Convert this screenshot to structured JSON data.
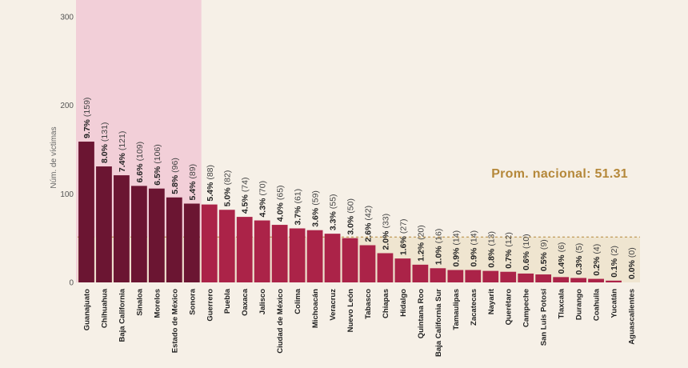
{
  "colors": {
    "background": "#f6f0e7",
    "highlight_band": "#f2cfd8",
    "bar_top": "#6b1532",
    "bar_rest": "#ab2348",
    "average_fill": "#ece1c8",
    "average_text": "#b5883a"
  },
  "chart_data": {
    "type": "bar",
    "ylabel": "Núm. de víctimas",
    "ylim": [
      0,
      300
    ],
    "yticks": [
      "0",
      "100",
      "200",
      "300"
    ],
    "average": {
      "label": "Prom. nacional: 51.31",
      "value": 51.31
    },
    "highlighted_count": 7,
    "categories": [
      "Guanajuato",
      "Chihuahua",
      "Baja California",
      "Sinaloa",
      "Morelos",
      "Estado de México",
      "Sonora",
      "Guerrero",
      "Puebla",
      "Oaxaca",
      "Jalisco",
      "Ciudad de México",
      "Colima",
      "Michoacán",
      "Veracruz",
      "Nuevo León",
      "Tabasco",
      "Chiapas",
      "Hidalgo",
      "Quintana Roo",
      "Baja California Sur",
      "Tamaulipas",
      "Zacatecas",
      "Nayarit",
      "Querétaro",
      "Campeche",
      "San Luis Potosí",
      "Tlaxcala",
      "Durango",
      "Coahuila",
      "Yucatán",
      "Aguascalientes"
    ],
    "values": [
      159,
      131,
      121,
      109,
      106,
      96,
      89,
      88,
      82,
      74,
      70,
      65,
      61,
      59,
      55,
      50,
      42,
      33,
      27,
      20,
      16,
      14,
      14,
      13,
      12,
      10,
      9,
      6,
      5,
      4,
      2,
      0
    ],
    "percent_labels": [
      "9.7%",
      "8.0%",
      "7.4%",
      "6.6%",
      "6.5%",
      "5.8%",
      "5.4%",
      "5.4%",
      "5.0%",
      "4.5%",
      "4.3%",
      "4.0%",
      "3.7%",
      "3.6%",
      "3.3%",
      "3.0%",
      "2.6%",
      "2.0%",
      "1.6%",
      "1.2%",
      "1.0%",
      "0.9%",
      "0.9%",
      "0.8%",
      "0.7%",
      "0.6%",
      "0.5%",
      "0.4%",
      "0.3%",
      "0.2%",
      "0.1%",
      "0.0%"
    ],
    "count_labels": [
      "(159)",
      "(131)",
      "(121)",
      "(109)",
      "(106)",
      "(96)",
      "(89)",
      "(88)",
      "(82)",
      "(74)",
      "(70)",
      "(65)",
      "(61)",
      "(59)",
      "(55)",
      "(50)",
      "(42)",
      "(33)",
      "(27)",
      "(20)",
      "(16)",
      "(14)",
      "(14)",
      "(13)",
      "(12)",
      "(10)",
      "(9)",
      "(6)",
      "(5)",
      "(4)",
      "(2)",
      "(0)"
    ]
  }
}
